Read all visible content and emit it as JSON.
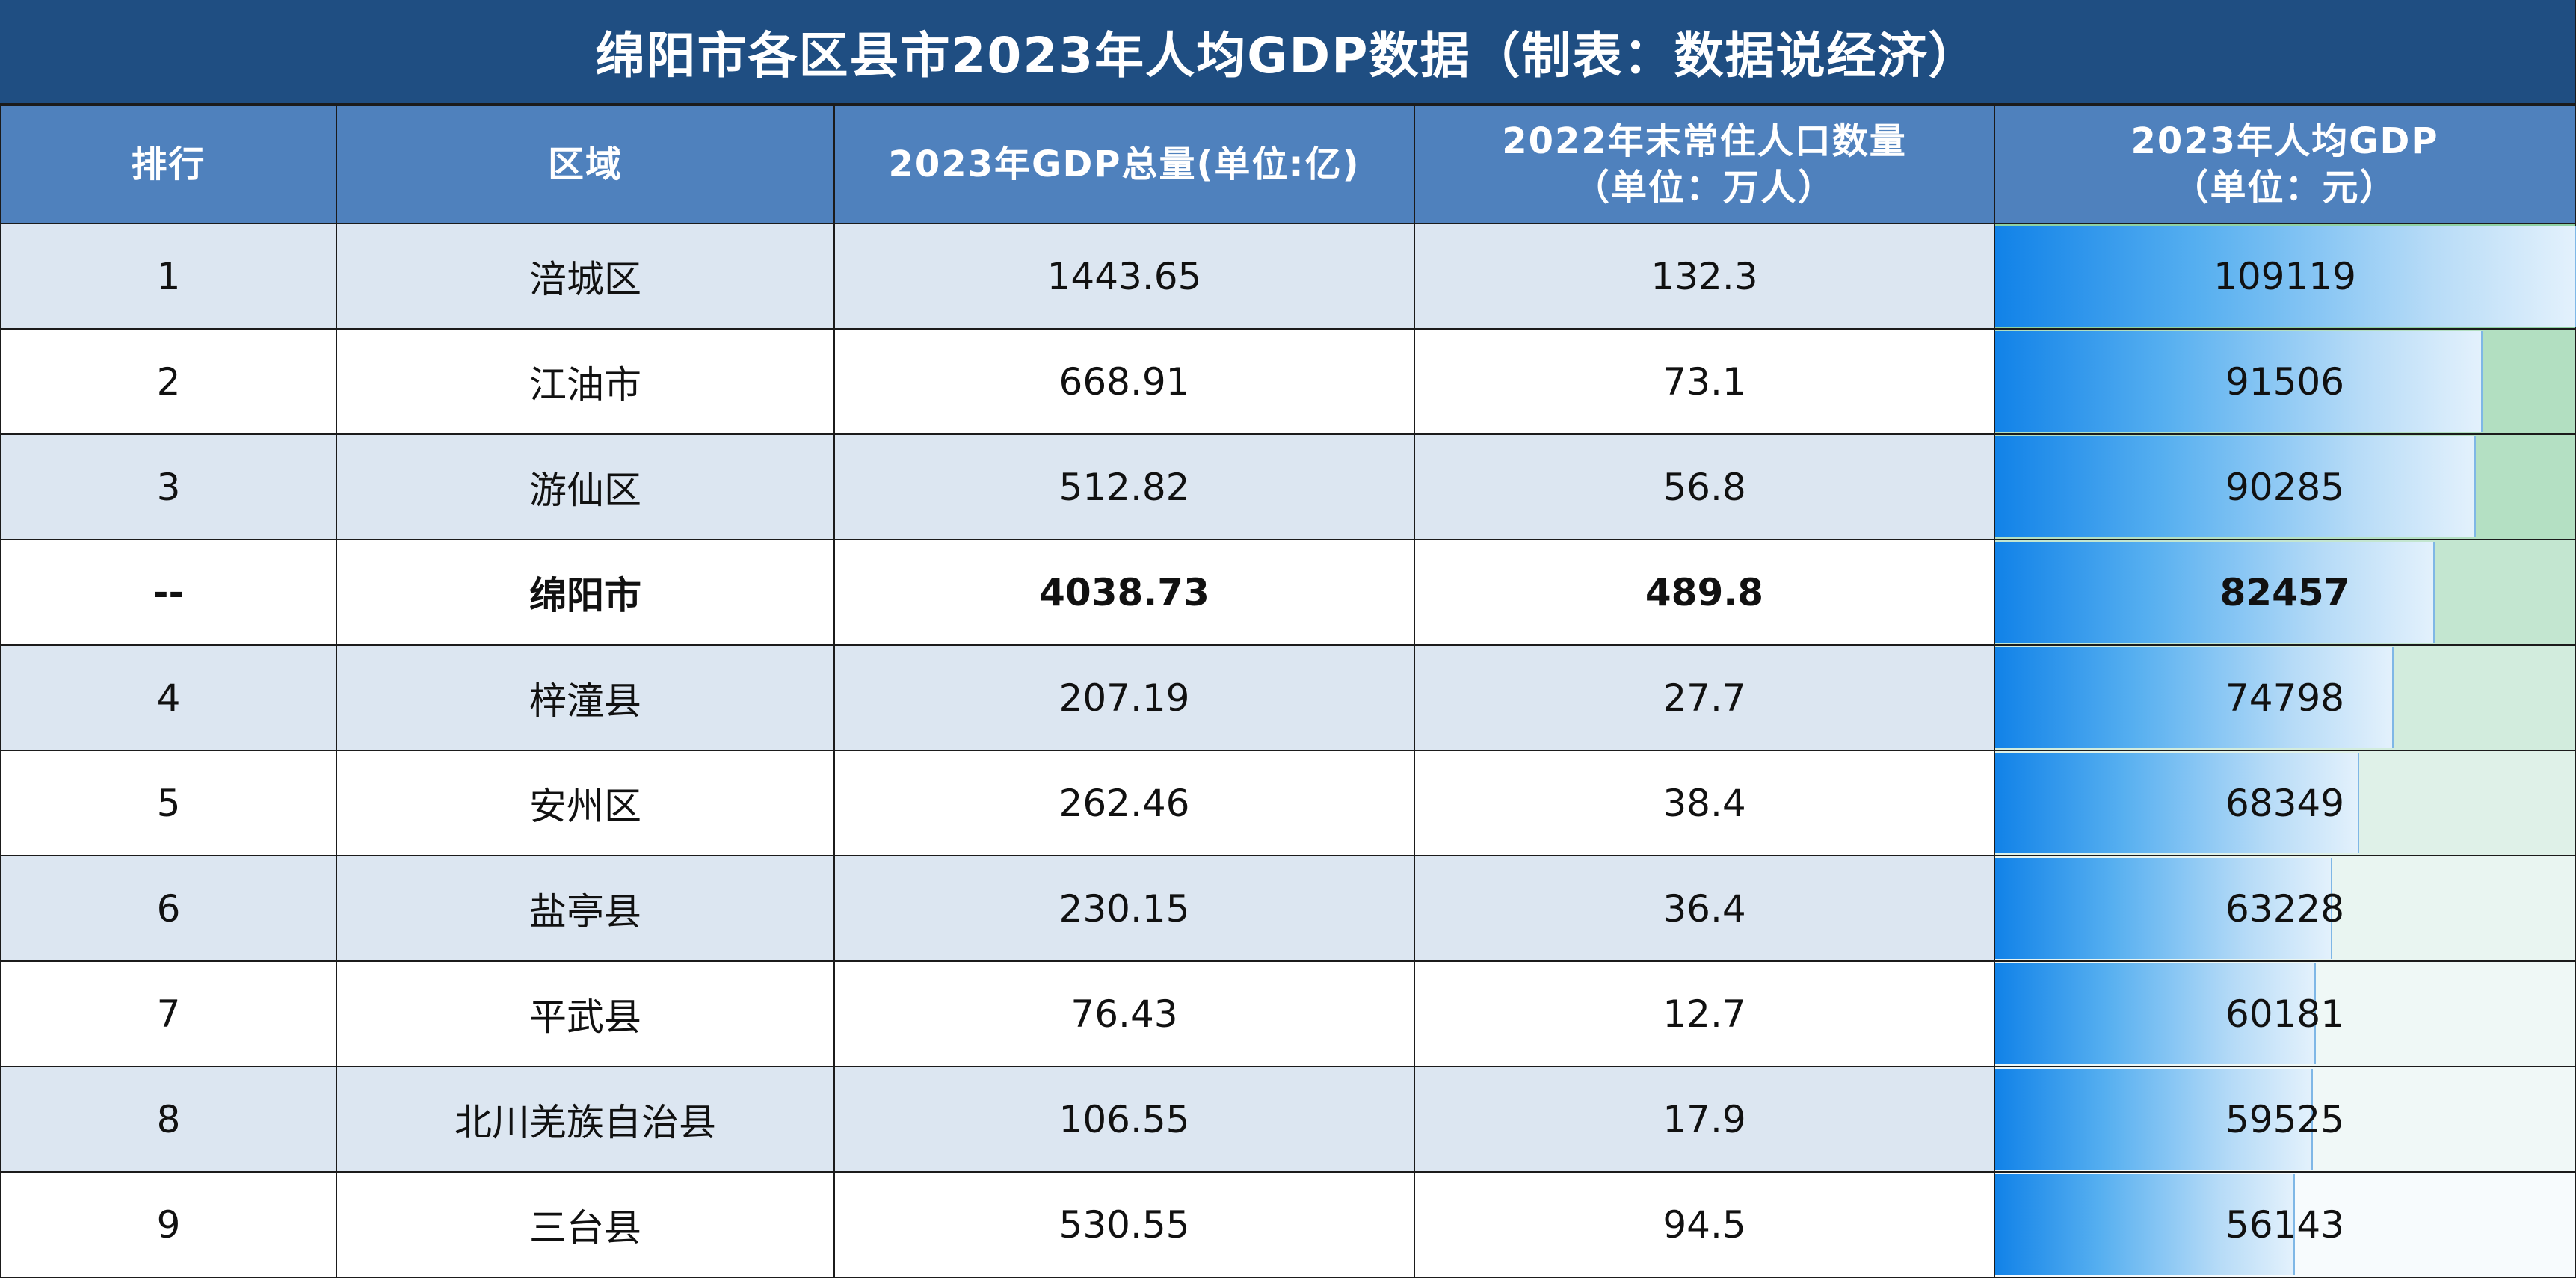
{
  "title": "绵阳市各区县市2023年人均GDP数据（制表：数据说经济）",
  "headers": {
    "rank": "排行",
    "region": "区域",
    "gdp": "2023年GDP总量(单位:亿)",
    "pop_line1": "2022年末常住人口数量",
    "pop_line2": "（单位：万人）",
    "pc_line1": "2023年人均GDP",
    "pc_line2": "（单位：元）"
  },
  "colors": {
    "title_bg": "#1f4e82",
    "header_bg": "#4f81bd",
    "row_alt": "#dce6f1",
    "bar_blue": "#1182e8",
    "heat_green_high": "#8fd1a3",
    "heat_green_low": "#f7fbfd"
  },
  "chart_data": {
    "type": "table",
    "bar_max": 109119,
    "rows": [
      {
        "rank": "1",
        "region": "涪城区",
        "gdp": "1443.65",
        "pop": "132.3",
        "per_capita": "109119",
        "value": 109119,
        "bold": false
      },
      {
        "rank": "2",
        "region": "江油市",
        "gdp": "668.91",
        "pop": "73.1",
        "per_capita": "91506",
        "value": 91506,
        "bold": false
      },
      {
        "rank": "3",
        "region": "游仙区",
        "gdp": "512.82",
        "pop": "56.8",
        "per_capita": "90285",
        "value": 90285,
        "bold": false
      },
      {
        "rank": "--",
        "region": "绵阳市",
        "gdp": "4038.73",
        "pop": "489.8",
        "per_capita": "82457",
        "value": 82457,
        "bold": true
      },
      {
        "rank": "4",
        "region": "梓潼县",
        "gdp": "207.19",
        "pop": "27.7",
        "per_capita": "74798",
        "value": 74798,
        "bold": false
      },
      {
        "rank": "5",
        "region": "安州区",
        "gdp": "262.46",
        "pop": "38.4",
        "per_capita": "68349",
        "value": 68349,
        "bold": false
      },
      {
        "rank": "6",
        "region": "盐亭县",
        "gdp": "230.15",
        "pop": "36.4",
        "per_capita": "63228",
        "value": 63228,
        "bold": false
      },
      {
        "rank": "7",
        "region": "平武县",
        "gdp": "76.43",
        "pop": "12.7",
        "per_capita": "60181",
        "value": 60181,
        "bold": false
      },
      {
        "rank": "8",
        "region": "北川羌族自治县",
        "gdp": "106.55",
        "pop": "17.9",
        "per_capita": "59525",
        "value": 59525,
        "bold": false
      },
      {
        "rank": "9",
        "region": "三台县",
        "gdp": "530.55",
        "pop": "94.5",
        "per_capita": "56143",
        "value": 56143,
        "bold": false
      }
    ]
  }
}
